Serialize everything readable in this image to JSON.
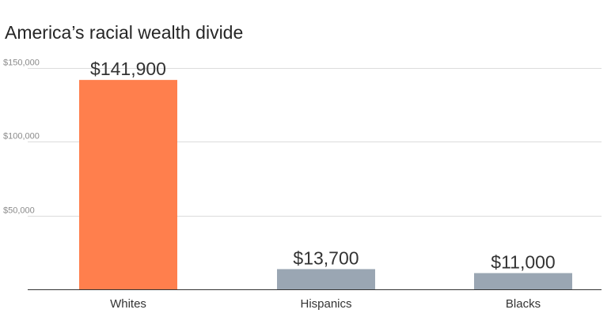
{
  "title": "America’s racial wealth divide",
  "chart_data": {
    "type": "bar",
    "title": "America’s racial wealth divide",
    "categories": [
      "Whites",
      "Hispanics",
      "Blacks"
    ],
    "values": [
      141900,
      13700,
      11000
    ],
    "value_labels": [
      "$141,900",
      "$13,700",
      "$11,000"
    ],
    "colors": [
      "#ff7f4d",
      "#9aa6b3",
      "#9aa6b3"
    ],
    "xlabel": "",
    "ylabel": "",
    "ylim": [
      0,
      150000
    ],
    "yticks": [
      50000,
      100000,
      150000
    ],
    "ytick_labels": [
      "$50,000",
      "$100,000",
      "$150,000"
    ],
    "grid": true,
    "legend": "none"
  }
}
